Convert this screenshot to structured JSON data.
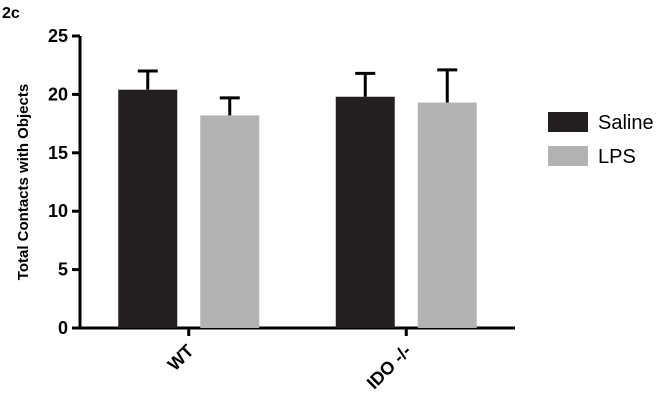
{
  "panel_label": "2c",
  "chart_data": {
    "type": "bar",
    "ylabel": "Total Contacts with  Objects",
    "categories": [
      "WT",
      "IDO -/-"
    ],
    "series": [
      {
        "name": "Saline",
        "color": "#231f20",
        "values": [
          20.4,
          19.8
        ],
        "errors": [
          1.6,
          2.0
        ]
      },
      {
        "name": "LPS",
        "color": "#b3b3b4",
        "values": [
          18.2,
          19.3
        ],
        "errors": [
          1.5,
          2.8
        ]
      }
    ],
    "ylim": [
      0,
      25
    ],
    "yticks": [
      0,
      5,
      10,
      15,
      20,
      25
    ],
    "legend": "right"
  }
}
